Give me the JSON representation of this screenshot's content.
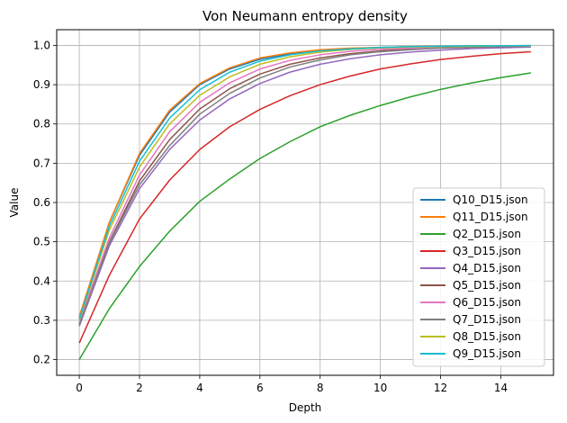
{
  "chart_data": {
    "type": "line",
    "title": "Von Neumann entropy density",
    "xlabel": "Depth",
    "ylabel": "Value",
    "xlim": [
      -0.75,
      15.75
    ],
    "ylim": [
      0.16,
      1.04
    ],
    "xticks": [
      0,
      2,
      4,
      6,
      8,
      10,
      12,
      14
    ],
    "yticks": [
      0.2,
      0.3,
      0.4,
      0.5,
      0.6,
      0.7,
      0.8,
      0.9,
      1.0
    ],
    "ytick_labels": [
      "0.2",
      "0.3",
      "0.4",
      "0.5",
      "0.6",
      "0.7",
      "0.8",
      "0.9",
      "1.0"
    ],
    "grid": true,
    "legend_position": "lower-right",
    "x": [
      0,
      1,
      2,
      3,
      4,
      5,
      6,
      7,
      8,
      9,
      10,
      11,
      12,
      13,
      14,
      15
    ],
    "series": [
      {
        "name": "Q10_D15.json",
        "color": "#1f77b4",
        "values": [
          0.305,
          0.55,
          0.72,
          0.83,
          0.9,
          0.94,
          0.965,
          0.978,
          0.986,
          0.991,
          0.994,
          0.996,
          0.997,
          0.998,
          0.999,
          0.999
        ]
      },
      {
        "name": "Q11_D15.json",
        "color": "#ff7f0e",
        "values": [
          0.31,
          0.55,
          0.725,
          0.835,
          0.903,
          0.943,
          0.968,
          0.981,
          0.989,
          0.993,
          0.995,
          0.997,
          0.998,
          0.999,
          0.999,
          0.999
        ]
      },
      {
        "name": "Q2_D15.json",
        "color": "#2ca02c",
        "values": [
          0.2,
          0.33,
          0.437,
          0.527,
          0.603,
          0.66,
          0.712,
          0.755,
          0.793,
          0.822,
          0.847,
          0.869,
          0.888,
          0.904,
          0.918,
          0.93
        ]
      },
      {
        "name": "Q3_D15.json",
        "color": "#d62728",
        "values": [
          0.242,
          0.415,
          0.558,
          0.657,
          0.735,
          0.793,
          0.837,
          0.872,
          0.9,
          0.922,
          0.94,
          0.953,
          0.964,
          0.972,
          0.979,
          0.984
        ]
      },
      {
        "name": "Q4_D15.json",
        "color": "#9467bd",
        "values": [
          0.285,
          0.49,
          0.635,
          0.735,
          0.81,
          0.864,
          0.903,
          0.932,
          0.952,
          0.966,
          0.976,
          0.983,
          0.988,
          0.992,
          0.994,
          0.996
        ]
      },
      {
        "name": "Q5_D15.json",
        "color": "#8c564b",
        "values": [
          0.29,
          0.5,
          0.655,
          0.76,
          0.838,
          0.89,
          0.927,
          0.952,
          0.968,
          0.979,
          0.986,
          0.991,
          0.994,
          0.996,
          0.997,
          0.998
        ]
      },
      {
        "name": "Q6_D15.json",
        "color": "#e377c2",
        "values": [
          0.295,
          0.51,
          0.67,
          0.78,
          0.855,
          0.905,
          0.94,
          0.962,
          0.976,
          0.985,
          0.99,
          0.993,
          0.995,
          0.997,
          0.998,
          0.998
        ]
      },
      {
        "name": "Q7_D15.json",
        "color": "#7f7f7f",
        "values": [
          0.288,
          0.497,
          0.645,
          0.745,
          0.825,
          0.878,
          0.917,
          0.945,
          0.963,
          0.976,
          0.984,
          0.989,
          0.993,
          0.995,
          0.997,
          0.998
        ]
      },
      {
        "name": "Q8_D15.json",
        "color": "#bcbd22",
        "values": [
          0.3,
          0.53,
          0.69,
          0.8,
          0.873,
          0.92,
          0.952,
          0.971,
          0.983,
          0.99,
          0.994,
          0.996,
          0.997,
          0.998,
          0.999,
          0.999
        ]
      },
      {
        "name": "Q9_D15.json",
        "color": "#17becf",
        "values": [
          0.303,
          0.54,
          0.705,
          0.815,
          0.887,
          0.932,
          0.96,
          0.976,
          0.986,
          0.991,
          0.995,
          0.997,
          0.998,
          0.999,
          0.999,
          1.0
        ]
      }
    ]
  }
}
